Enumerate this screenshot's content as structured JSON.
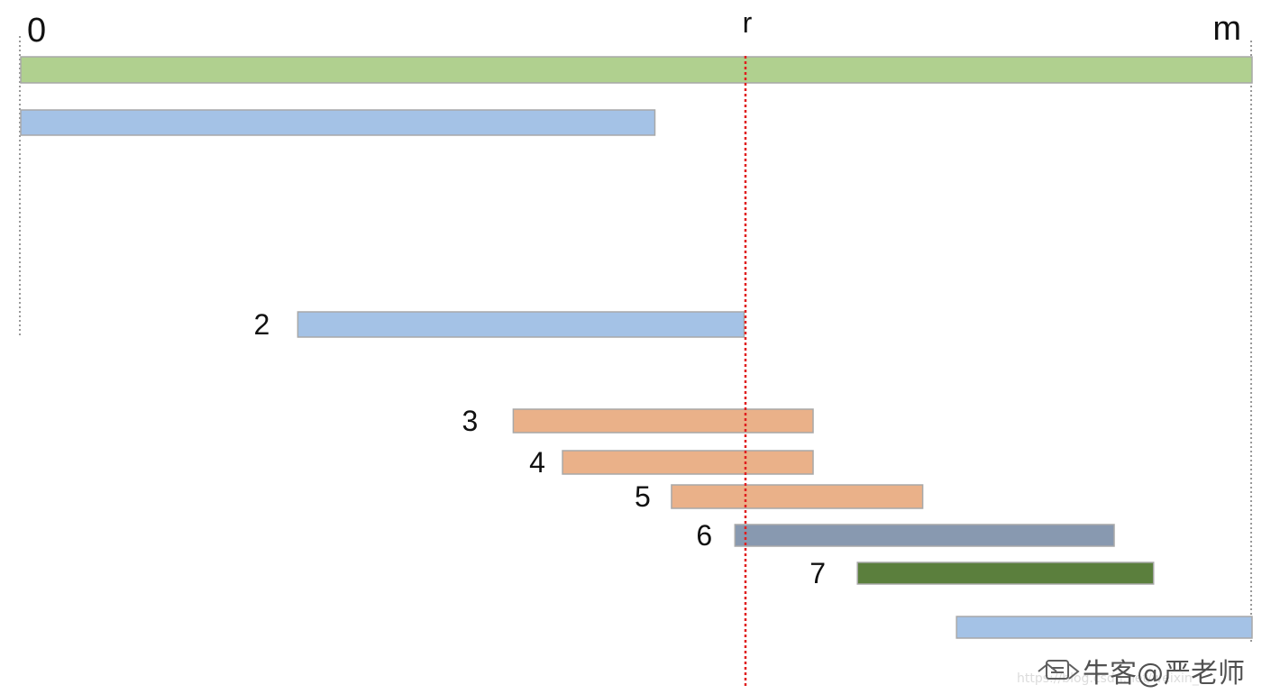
{
  "markers": {
    "start": "0",
    "cut": "r",
    "end": "m"
  },
  "intervals": [
    {
      "id": "full",
      "label": "",
      "from": 0,
      "to": 2000,
      "color": "#b0d08f"
    },
    {
      "id": "prefix",
      "label": "",
      "from": 0,
      "to": 1030,
      "color": "#a4c2e6"
    },
    {
      "id": "seg-2",
      "label": "2",
      "from": 450,
      "to": 1175,
      "color": "#a4c2e6"
    },
    {
      "id": "seg-3",
      "label": "3",
      "from": 800,
      "to": 1287,
      "color": "#eab189"
    },
    {
      "id": "seg-4",
      "label": "4",
      "from": 880,
      "to": 1287,
      "color": "#eab189"
    },
    {
      "id": "seg-5",
      "label": "5",
      "from": 1057,
      "to": 1465,
      "color": "#eab189"
    },
    {
      "id": "seg-6",
      "label": "6",
      "from": 1160,
      "to": 1776,
      "color": "#8899b0"
    },
    {
      "id": "seg-7",
      "label": "7",
      "from": 1359,
      "to": 1840,
      "color": "#5b7f3d"
    },
    {
      "id": "suffix",
      "label": "",
      "from": 1520,
      "to": 2000,
      "color": "#a4c2e6"
    }
  ],
  "cut_value": 1175,
  "range_max": 2000,
  "colors": {
    "cut_line": "#e02020",
    "guide_line": "#999999",
    "bar_border": "#a8a8a8",
    "text": "#111111"
  },
  "watermark": {
    "logo": "牛客logo",
    "text": "牛客@严老师",
    "url": "https://blog.csdn.net/weixin_"
  }
}
